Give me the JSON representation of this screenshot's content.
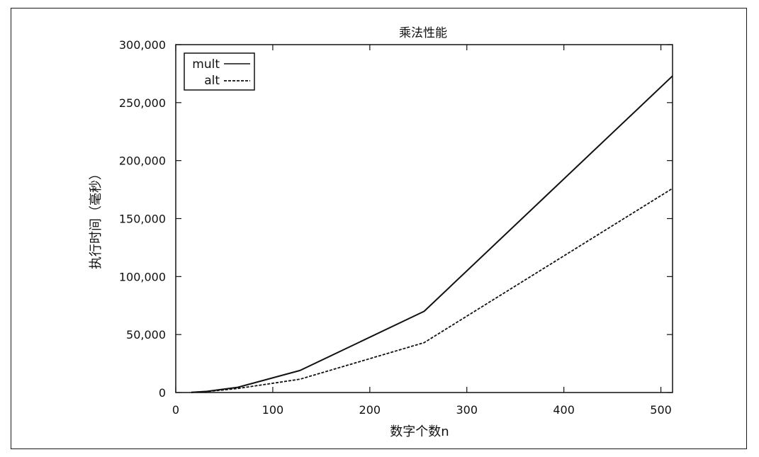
{
  "chart_data": {
    "type": "line",
    "title": "乘法性能",
    "xlabel": "数字个数n",
    "ylabel": "执行时间（毫秒）",
    "xlim": [
      0,
      512
    ],
    "ylim": [
      0,
      300000
    ],
    "x_ticks": [
      "0",
      "100",
      "200",
      "300",
      "400",
      "500"
    ],
    "y_ticks": [
      "0",
      "50,000",
      "100,000",
      "150,000",
      "200,000",
      "250,000",
      "300,000"
    ],
    "grid": false,
    "legend_position": "top-left",
    "series": [
      {
        "name": "mult",
        "style": "solid",
        "x": [
          16,
          32,
          64,
          128,
          256,
          512
        ],
        "values": [
          200,
          1000,
          4500,
          19000,
          70000,
          273000
        ]
      },
      {
        "name": "alt",
        "style": "dashed",
        "x": [
          16,
          32,
          64,
          128,
          256,
          512
        ],
        "values": [
          150,
          800,
          3500,
          11500,
          43000,
          176000
        ]
      }
    ]
  }
}
